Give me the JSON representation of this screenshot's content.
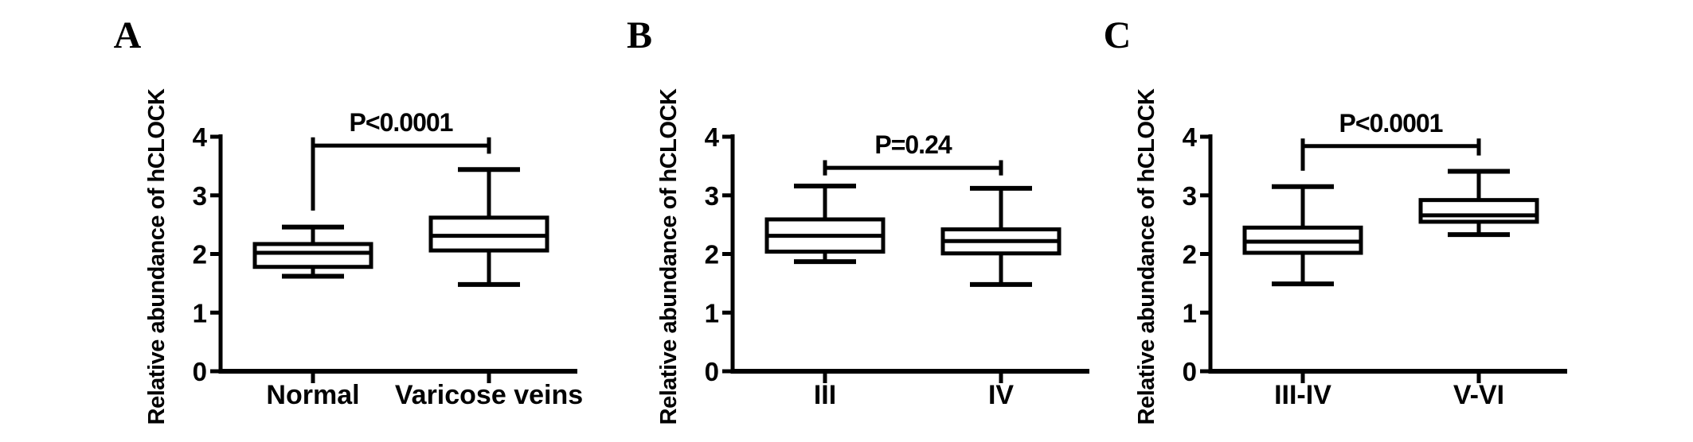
{
  "figure": {
    "background_color": "#ffffff",
    "ink_color": "#000000",
    "y_axis_label": "Relative abundance of hCLOCK"
  },
  "chart_data": [
    {
      "type": "boxplot",
      "panel_label": "A",
      "ylabel": "Relative abundance of hCLOCK",
      "ylim": [
        0,
        4
      ],
      "yticks": [
        0,
        1,
        2,
        3,
        4
      ],
      "categories": [
        "Normal",
        "Varicose veins"
      ],
      "series": [
        {
          "name": "Normal",
          "whisker_low": 1.62,
          "q1": 1.78,
          "median": 2.02,
          "q3": 2.17,
          "whisker_high": 2.46
        },
        {
          "name": "Varicose veins",
          "whisker_low": 1.48,
          "q1": 2.06,
          "median": 2.31,
          "q3": 2.62,
          "whisker_high": 3.44
        }
      ],
      "significance": {
        "label": "P<0.0001",
        "bar_level": 3.85,
        "arm_top_level": 3.99,
        "left_arm_down_to": 2.74,
        "right_arm_down_to": 3.71
      }
    },
    {
      "type": "boxplot",
      "panel_label": "B",
      "ylabel": "Relative abundance of hCLOCK",
      "ylim": [
        0,
        4
      ],
      "yticks": [
        0,
        1,
        2,
        3,
        4
      ],
      "categories": [
        "III",
        "IV"
      ],
      "series": [
        {
          "name": "III",
          "whisker_low": 1.87,
          "q1": 2.04,
          "median": 2.31,
          "q3": 2.59,
          "whisker_high": 3.16
        },
        {
          "name": "IV",
          "whisker_low": 1.48,
          "q1": 2.01,
          "median": 2.22,
          "q3": 2.42,
          "whisker_high": 3.12
        }
      ],
      "significance": {
        "label": "P=0.24",
        "bar_level": 3.47,
        "arm_top_level": 3.6,
        "left_arm_down_to": 3.34,
        "right_arm_down_to": 3.34
      }
    },
    {
      "type": "boxplot",
      "panel_label": "C",
      "ylabel": "Relative abundance of hCLOCK",
      "ylim": [
        0,
        4
      ],
      "yticks": [
        0,
        1,
        2,
        3,
        4
      ],
      "categories": [
        "III-IV",
        "V-VI"
      ],
      "series": [
        {
          "name": "III-IV",
          "whisker_low": 1.49,
          "q1": 2.02,
          "median": 2.21,
          "q3": 2.45,
          "whisker_high": 3.15
        },
        {
          "name": "V-VI",
          "whisker_low": 2.33,
          "q1": 2.55,
          "median": 2.66,
          "q3": 2.92,
          "whisker_high": 3.41
        }
      ],
      "significance": {
        "label": "P<0.0001",
        "bar_level": 3.84,
        "arm_top_level": 3.97,
        "left_arm_down_to": 3.42,
        "right_arm_down_to": 3.68
      }
    }
  ]
}
